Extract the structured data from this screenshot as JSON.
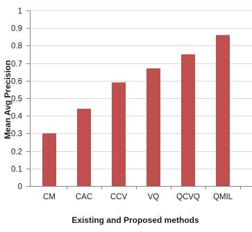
{
  "chart_data": {
    "type": "bar",
    "title": "",
    "xlabel": "Existing and Proposed methods",
    "ylabel": "Mean Avg Precision",
    "categories": [
      "CM",
      "CAC",
      "CCV",
      "VQ",
      "QCVQ",
      "QMIL"
    ],
    "values": [
      0.3,
      0.44,
      0.59,
      0.67,
      0.75,
      0.86
    ],
    "ylim": [
      0,
      1
    ],
    "yticks": [
      "0",
      "0.1",
      "0.2",
      "0.3",
      "0.4",
      "0.5",
      "0.6",
      "0.7",
      "0.8",
      "0.9",
      "1"
    ],
    "grid": true,
    "legend": "none",
    "colors": {
      "bar": "#c0504d",
      "grid": "#d9d9d9",
      "axis": "#868686"
    }
  }
}
